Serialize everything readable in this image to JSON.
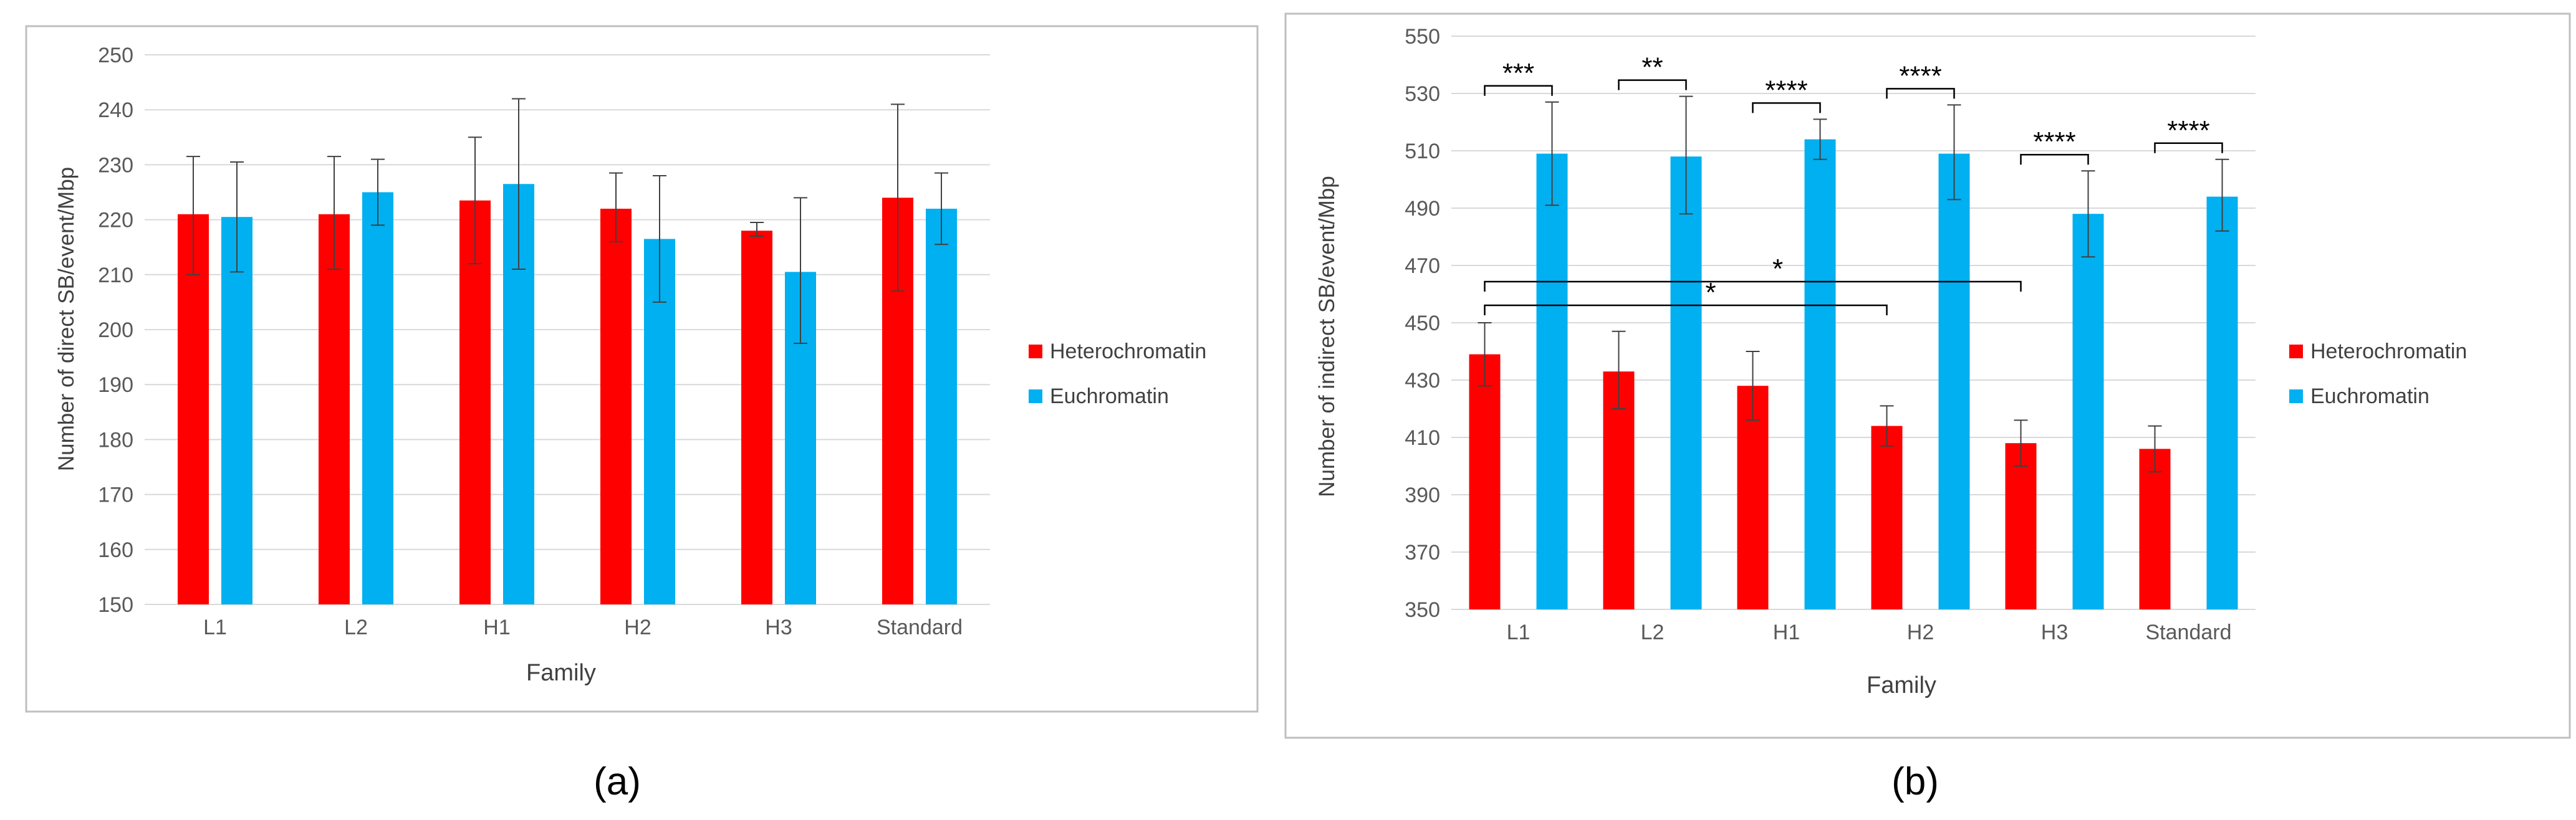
{
  "colors": {
    "heterochromatin": "#ff0000",
    "euchromatin": "#00b0f0",
    "grid": "#d9d9d9",
    "axis_text": "#595959",
    "frame": "#bfbfbf"
  },
  "chart_data": [
    {
      "type": "bar",
      "panel_label": "(a)",
      "categories": [
        "L1",
        "L2",
        "H1",
        "H2",
        "H3",
        "Standard"
      ],
      "xlabel": "Family",
      "ylabel": "Number of direct SB/event/Mbp",
      "ylim": [
        150,
        250
      ],
      "yticks": [
        150,
        160,
        170,
        180,
        190,
        200,
        210,
        220,
        230,
        240,
        250
      ],
      "grid": true,
      "legend_position": "right",
      "series": [
        {
          "name": "Heterochromatin",
          "values": [
            221,
            221,
            223.5,
            222,
            218,
            224
          ],
          "err_low": [
            210,
            211,
            212,
            216,
            217,
            207
          ],
          "err_high": [
            231.5,
            231.5,
            235,
            228.5,
            219.5,
            241
          ]
        },
        {
          "name": "Euchromatin",
          "values": [
            220.5,
            225,
            226.5,
            216.5,
            210.5,
            222
          ],
          "err_low": [
            210.5,
            219,
            211,
            205,
            197.5,
            215.5
          ],
          "err_high": [
            230.5,
            231,
            242,
            228,
            224,
            228.5
          ]
        }
      ],
      "annotations": []
    },
    {
      "type": "bar",
      "panel_label": "(b)",
      "categories": [
        "L1",
        "L2",
        "H1",
        "H2",
        "H3",
        "Standard"
      ],
      "xlabel": "Family",
      "ylabel": "Number of indirect SB/event/Mbp",
      "ylim": [
        350,
        550
      ],
      "yticks": [
        350,
        370,
        390,
        410,
        430,
        450,
        470,
        490,
        510,
        530,
        550
      ],
      "grid": true,
      "legend_position": "right",
      "series": [
        {
          "name": "Heterochromatin",
          "values": [
            439,
            433,
            428,
            414,
            408,
            406
          ],
          "err_low": [
            428,
            420,
            416,
            407,
            400,
            398
          ],
          "err_high": [
            450,
            447,
            440,
            421,
            416,
            414
          ]
        },
        {
          "name": "Euchromatin",
          "values": [
            509,
            508,
            514,
            509,
            488,
            494
          ],
          "err_low": [
            491,
            488,
            507,
            493,
            473,
            482
          ],
          "err_high": [
            527,
            529,
            521,
            526,
            503,
            507
          ]
        }
      ],
      "annotations": [
        {
          "text": "***",
          "category": "L1"
        },
        {
          "text": "**",
          "category": "L2"
        },
        {
          "text": "****",
          "category": "H1"
        },
        {
          "text": "****",
          "category": "H2"
        },
        {
          "text": "****",
          "category": "H3"
        },
        {
          "text": "****",
          "category": "Standard"
        },
        {
          "text": "*",
          "from": "L1",
          "to": "H2"
        },
        {
          "text": "*",
          "from": "L1",
          "to": "H3"
        }
      ]
    }
  ]
}
